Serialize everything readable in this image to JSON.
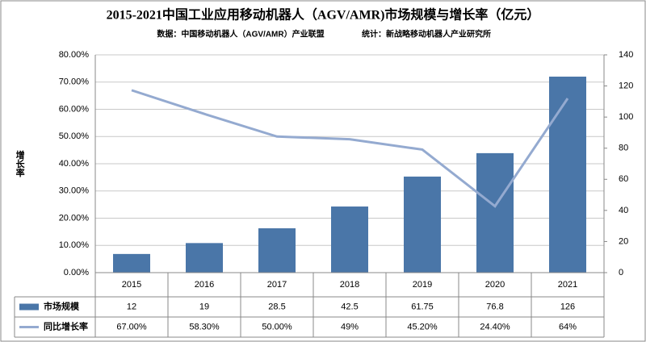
{
  "chart_data": {
    "type": "bar",
    "title": "2015-2021中国工业应用移动机器人（AGV/AMR)市场规模与增长率（亿元）",
    "source": "数据：中国移动机器人（AGV/AMR）产业联盟",
    "stat": "统计：新战略移动机器人产业研究所",
    "ylabel": "增长率",
    "categories": [
      "2015",
      "2016",
      "2017",
      "2018",
      "2019",
      "2020",
      "2021"
    ],
    "series": [
      {
        "name": "市场规模",
        "type": "bar",
        "axis": "y2",
        "color": "#4a76a8",
        "values": [
          12,
          19,
          28.5,
          42.5,
          61.75,
          76.8,
          126
        ]
      },
      {
        "name": "同比增长率",
        "type": "line",
        "axis": "y",
        "color": "#94aad0",
        "values": [
          67,
          58.3,
          50,
          49,
          45.2,
          24.4,
          64
        ],
        "value_labels": [
          "67.00%",
          "58.30%",
          "50.00%",
          "49%",
          "45.20%",
          "24.40%",
          "64%"
        ]
      }
    ],
    "ylim": [
      0,
      80
    ],
    "yticks": [
      {
        "value": 0,
        "label": "0.00%"
      },
      {
        "value": 10,
        "label": "10.00%"
      },
      {
        "value": 20,
        "label": "20.00%"
      },
      {
        "value": 30,
        "label": "30.00%"
      },
      {
        "value": 40,
        "label": "40.00%"
      },
      {
        "value": 50,
        "label": "50.00%"
      },
      {
        "value": 60,
        "label": "60.00%"
      },
      {
        "value": 70,
        "label": "70.00%"
      },
      {
        "value": 80,
        "label": "80.00%"
      }
    ],
    "y2lim": [
      0,
      140
    ],
    "y2ticks": [
      0,
      20,
      40,
      60,
      80,
      100,
      120,
      140
    ],
    "grid": true
  }
}
